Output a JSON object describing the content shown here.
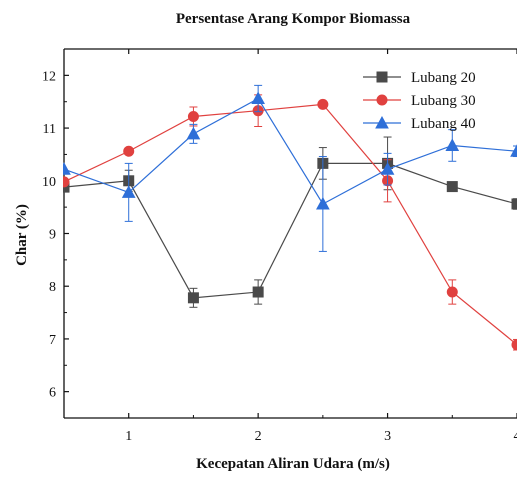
{
  "chart_data": {
    "type": "line",
    "title": "Persentase Arang Kompor Biomassa",
    "xlabel": "Kecepatan Aliran Udara (m/s)",
    "ylabel": "Char (%)",
    "xlim": [
      0.5,
      4.0
    ],
    "ylim": [
      5.5,
      12.5
    ],
    "xticks": [
      1,
      2,
      3,
      4
    ],
    "yticks": [
      6,
      7,
      8,
      9,
      10,
      11,
      12
    ],
    "grid": false,
    "legend_position": "top-right",
    "series": [
      {
        "name": "Lubang 20",
        "color": "#4a4a4a",
        "marker": "square",
        "x": [
          0.5,
          1.0,
          1.5,
          2.0,
          2.5,
          3.0,
          3.5,
          4.0
        ],
        "y": [
          9.88,
          10.0,
          7.78,
          7.89,
          10.33,
          10.33,
          9.89,
          9.56
        ],
        "err": [
          0.0,
          0.2,
          0.18,
          0.23,
          0.3,
          0.5,
          0.08,
          0.1
        ]
      },
      {
        "name": "Lubang 30",
        "color": "#e0413f",
        "marker": "circle",
        "x": [
          0.5,
          1.0,
          1.5,
          2.0,
          2.5,
          3.0,
          3.5,
          4.0
        ],
        "y": [
          9.98,
          10.56,
          11.22,
          11.33,
          11.45,
          10.0,
          7.89,
          6.89
        ],
        "err": [
          0.0,
          0.06,
          0.18,
          0.3,
          0.06,
          0.4,
          0.23,
          0.1
        ]
      },
      {
        "name": "Lubang 40",
        "color": "#2e6fd8",
        "marker": "triangle",
        "x": [
          0.5,
          1.0,
          1.5,
          2.0,
          2.5,
          3.0,
          3.5,
          4.0
        ],
        "y": [
          10.22,
          9.78,
          10.89,
          11.56,
          9.56,
          10.22,
          10.67,
          10.56
        ],
        "err": [
          0.0,
          0.55,
          0.18,
          0.25,
          0.9,
          0.3,
          0.3,
          0.1
        ]
      }
    ]
  }
}
